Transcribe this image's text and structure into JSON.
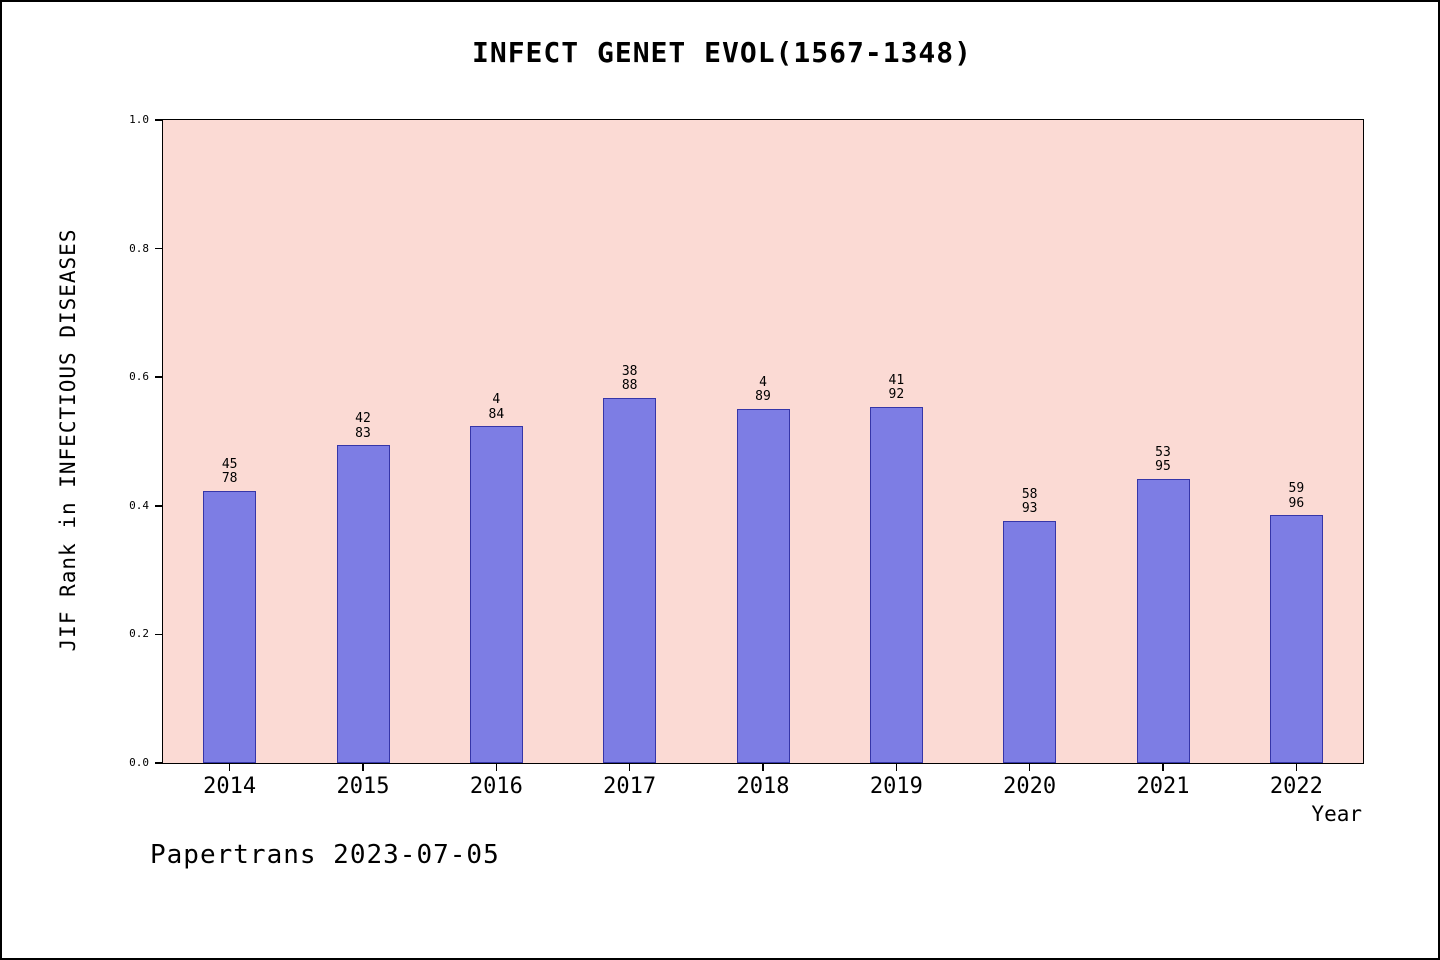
{
  "chart_data": {
    "type": "bar",
    "title": "INFECT GENET EVOL(1567-1348)",
    "xlabel": "Year",
    "ylabel": "JIF Rank in INFECTIOUS DISEASES",
    "ylim": [
      0.0,
      1.0
    ],
    "yticks": [
      "0.0",
      "0.2",
      "0.4",
      "0.6",
      "0.8",
      "1.0"
    ],
    "grid": "off",
    "legend": "none",
    "categories": [
      "2014",
      "2015",
      "2016",
      "2017",
      "2018",
      "2019",
      "2020",
      "2021",
      "2022"
    ],
    "values": [
      0.423,
      0.494,
      0.524,
      0.568,
      0.551,
      0.554,
      0.377,
      0.442,
      0.385
    ],
    "bar_labels": [
      {
        "top": "45",
        "bottom": "78"
      },
      {
        "top": "42",
        "bottom": "83"
      },
      {
        "top": "4",
        "bottom": "84"
      },
      {
        "top": "38",
        "bottom": "88"
      },
      {
        "top": "4",
        "bottom": "89"
      },
      {
        "top": "41",
        "bottom": "92"
      },
      {
        "top": "58",
        "bottom": "93"
      },
      {
        "top": "53",
        "bottom": "95"
      },
      {
        "top": "59",
        "bottom": "96"
      }
    ],
    "colors": {
      "bar_fill": "#7d7de4",
      "bar_edge": "#3636a8",
      "plot_background": "#fbdad4",
      "text": "#000000"
    }
  },
  "footer": {
    "note": "Papertrans 2023-07-05"
  }
}
